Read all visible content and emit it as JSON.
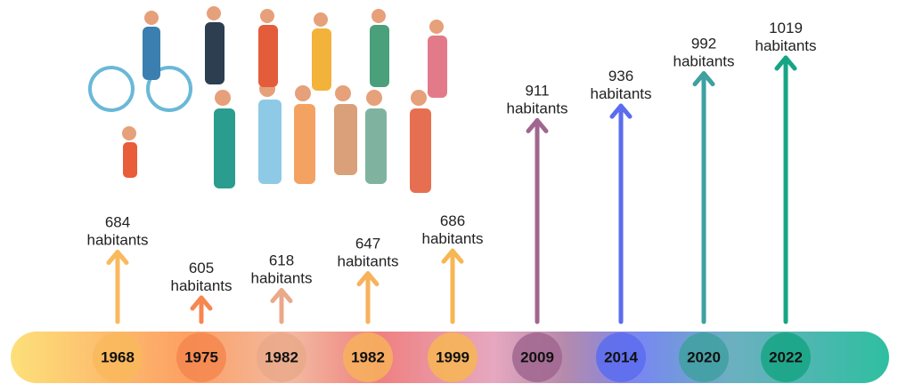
{
  "chart_data": {
    "type": "timeline",
    "categories": [
      "1968",
      "1975",
      "1982",
      "1982",
      "1999",
      "2009",
      "2014",
      "2020",
      "2022"
    ],
    "values": [
      684,
      605,
      618,
      647,
      686,
      911,
      936,
      992,
      1019
    ],
    "value_labels": [
      "684 habitants",
      "605 habitants",
      "618 habitants",
      "647 habitants",
      "686 habitants",
      "911 habitants",
      "936 habitants",
      "992 habitants",
      "1019 habitants"
    ],
    "colors": [
      "#f9b95c",
      "#f5874f",
      "#e9a98a",
      "#f7b25c",
      "#f7b654",
      "#a0668f",
      "#5a6cf0",
      "#3fa0a0",
      "#16a584"
    ]
  }
}
